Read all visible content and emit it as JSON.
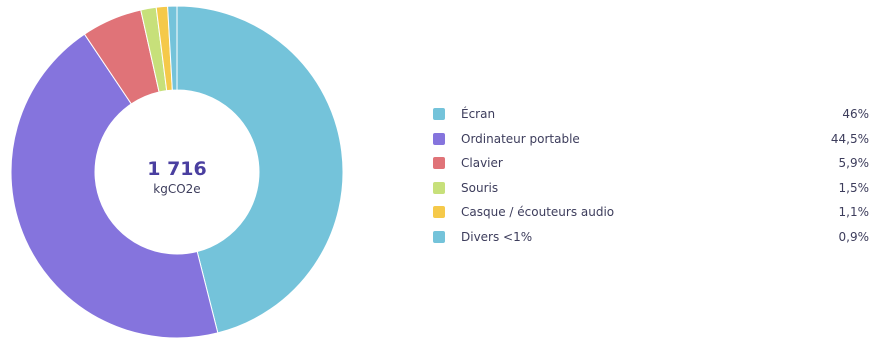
{
  "chart_data": {
    "type": "pie",
    "variant": "donut",
    "total": "1 716",
    "total_unit": "kgCO2e",
    "legend_placement": "right",
    "slices": [
      {
        "label": "Écran",
        "value": 46,
        "value_label": "46%",
        "color": "#74c3da"
      },
      {
        "label": "Ordinateur portable",
        "value": 44.5,
        "value_label": "44,5%",
        "color": "#8574dd"
      },
      {
        "label": "Clavier",
        "value": 5.9,
        "value_label": "5,9%",
        "color": "#e07378"
      },
      {
        "label": "Souris",
        "value": 1.5,
        "value_label": "1,5%",
        "color": "#c7e07a"
      },
      {
        "label": "Casque / écouteurs audio",
        "value": 1.1,
        "value_label": "1,1%",
        "color": "#f5c94a"
      },
      {
        "label": "Divers <1%",
        "value": 0.9,
        "value_label": "0,9%",
        "color": "#74c3da"
      }
    ]
  }
}
